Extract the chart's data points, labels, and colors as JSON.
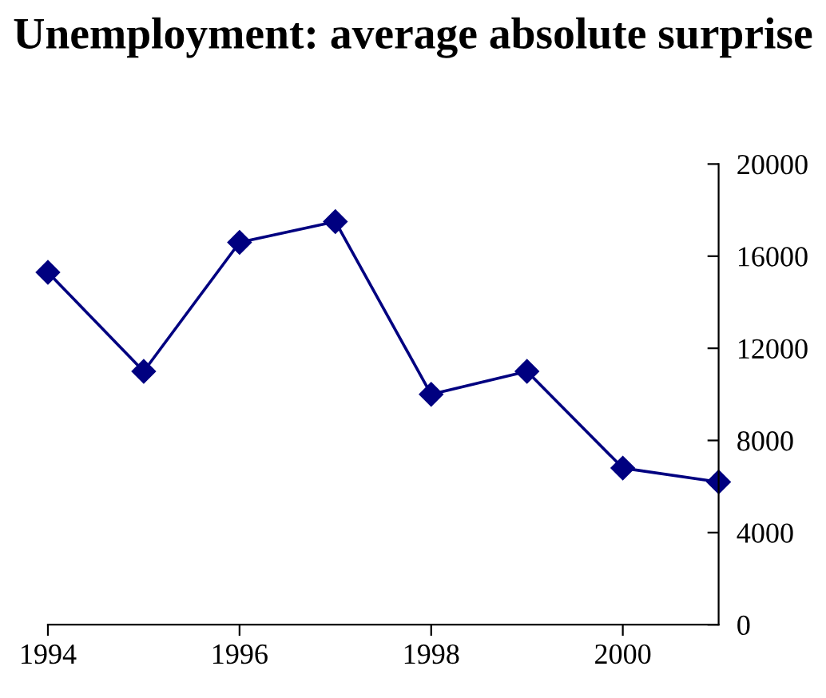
{
  "chart_data": {
    "type": "line",
    "title": "Unemployment: average absolute surprise",
    "x": [
      1994,
      1995,
      1996,
      1997,
      1998,
      1999,
      2000,
      2001
    ],
    "series": [
      {
        "color": "#000080",
        "values": [
          15300,
          11000,
          16600,
          17500,
          10000,
          11000,
          6800,
          6200
        ]
      }
    ],
    "xlim": [
      1994,
      2001
    ],
    "xticks": [
      1994,
      1996,
      1998,
      2000
    ],
    "ylim": [
      0,
      20000
    ],
    "yticks": [
      0,
      4000,
      8000,
      12000,
      16000,
      20000
    ],
    "marker": "diamond",
    "line_style": "solid",
    "grid": false,
    "legend": false
  }
}
